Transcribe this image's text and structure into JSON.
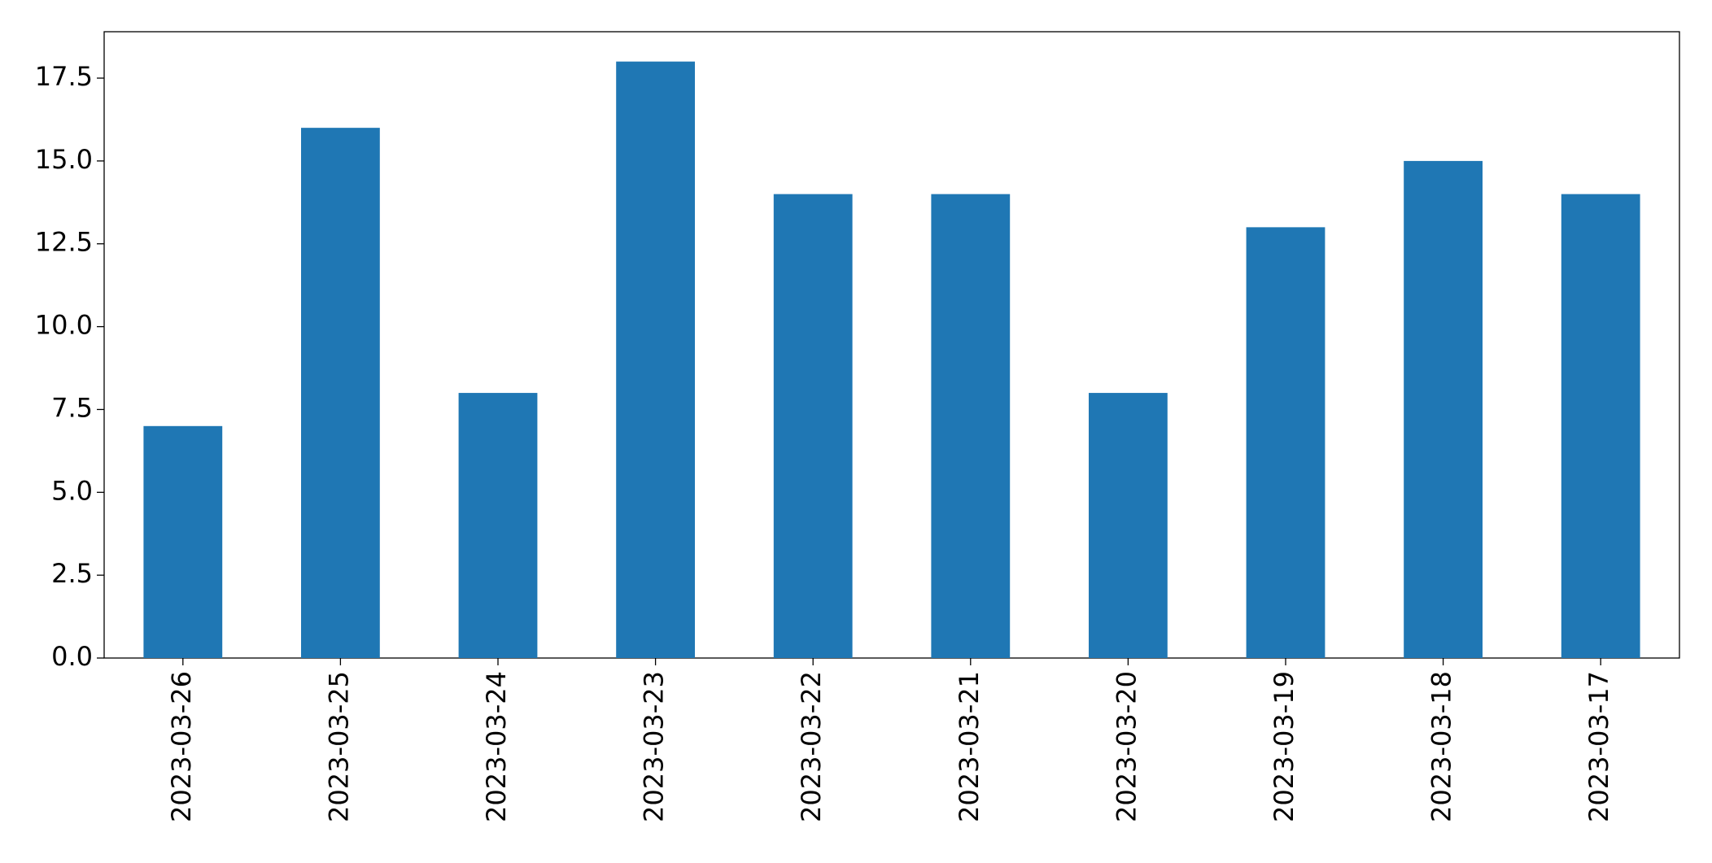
{
  "chart_data": {
    "type": "bar",
    "categories": [
      "2023-03-26",
      "2023-03-25",
      "2023-03-24",
      "2023-03-23",
      "2023-03-22",
      "2023-03-21",
      "2023-03-20",
      "2023-03-19",
      "2023-03-18",
      "2023-03-17"
    ],
    "values": [
      7,
      16,
      8,
      18,
      14,
      14,
      8,
      13,
      15,
      14
    ],
    "color": "#1f77b4",
    "ylim": [
      0,
      18.9
    ],
    "yticks": [
      {
        "value": 0,
        "label": "0.0"
      },
      2.5,
      {
        "value": 5,
        "label": "5.0"
      },
      7.5,
      {
        "value": 10,
        "label": "10.0"
      },
      12.5,
      {
        "value": 15,
        "label": "15.0"
      },
      17.5
    ],
    "grid": false
  }
}
